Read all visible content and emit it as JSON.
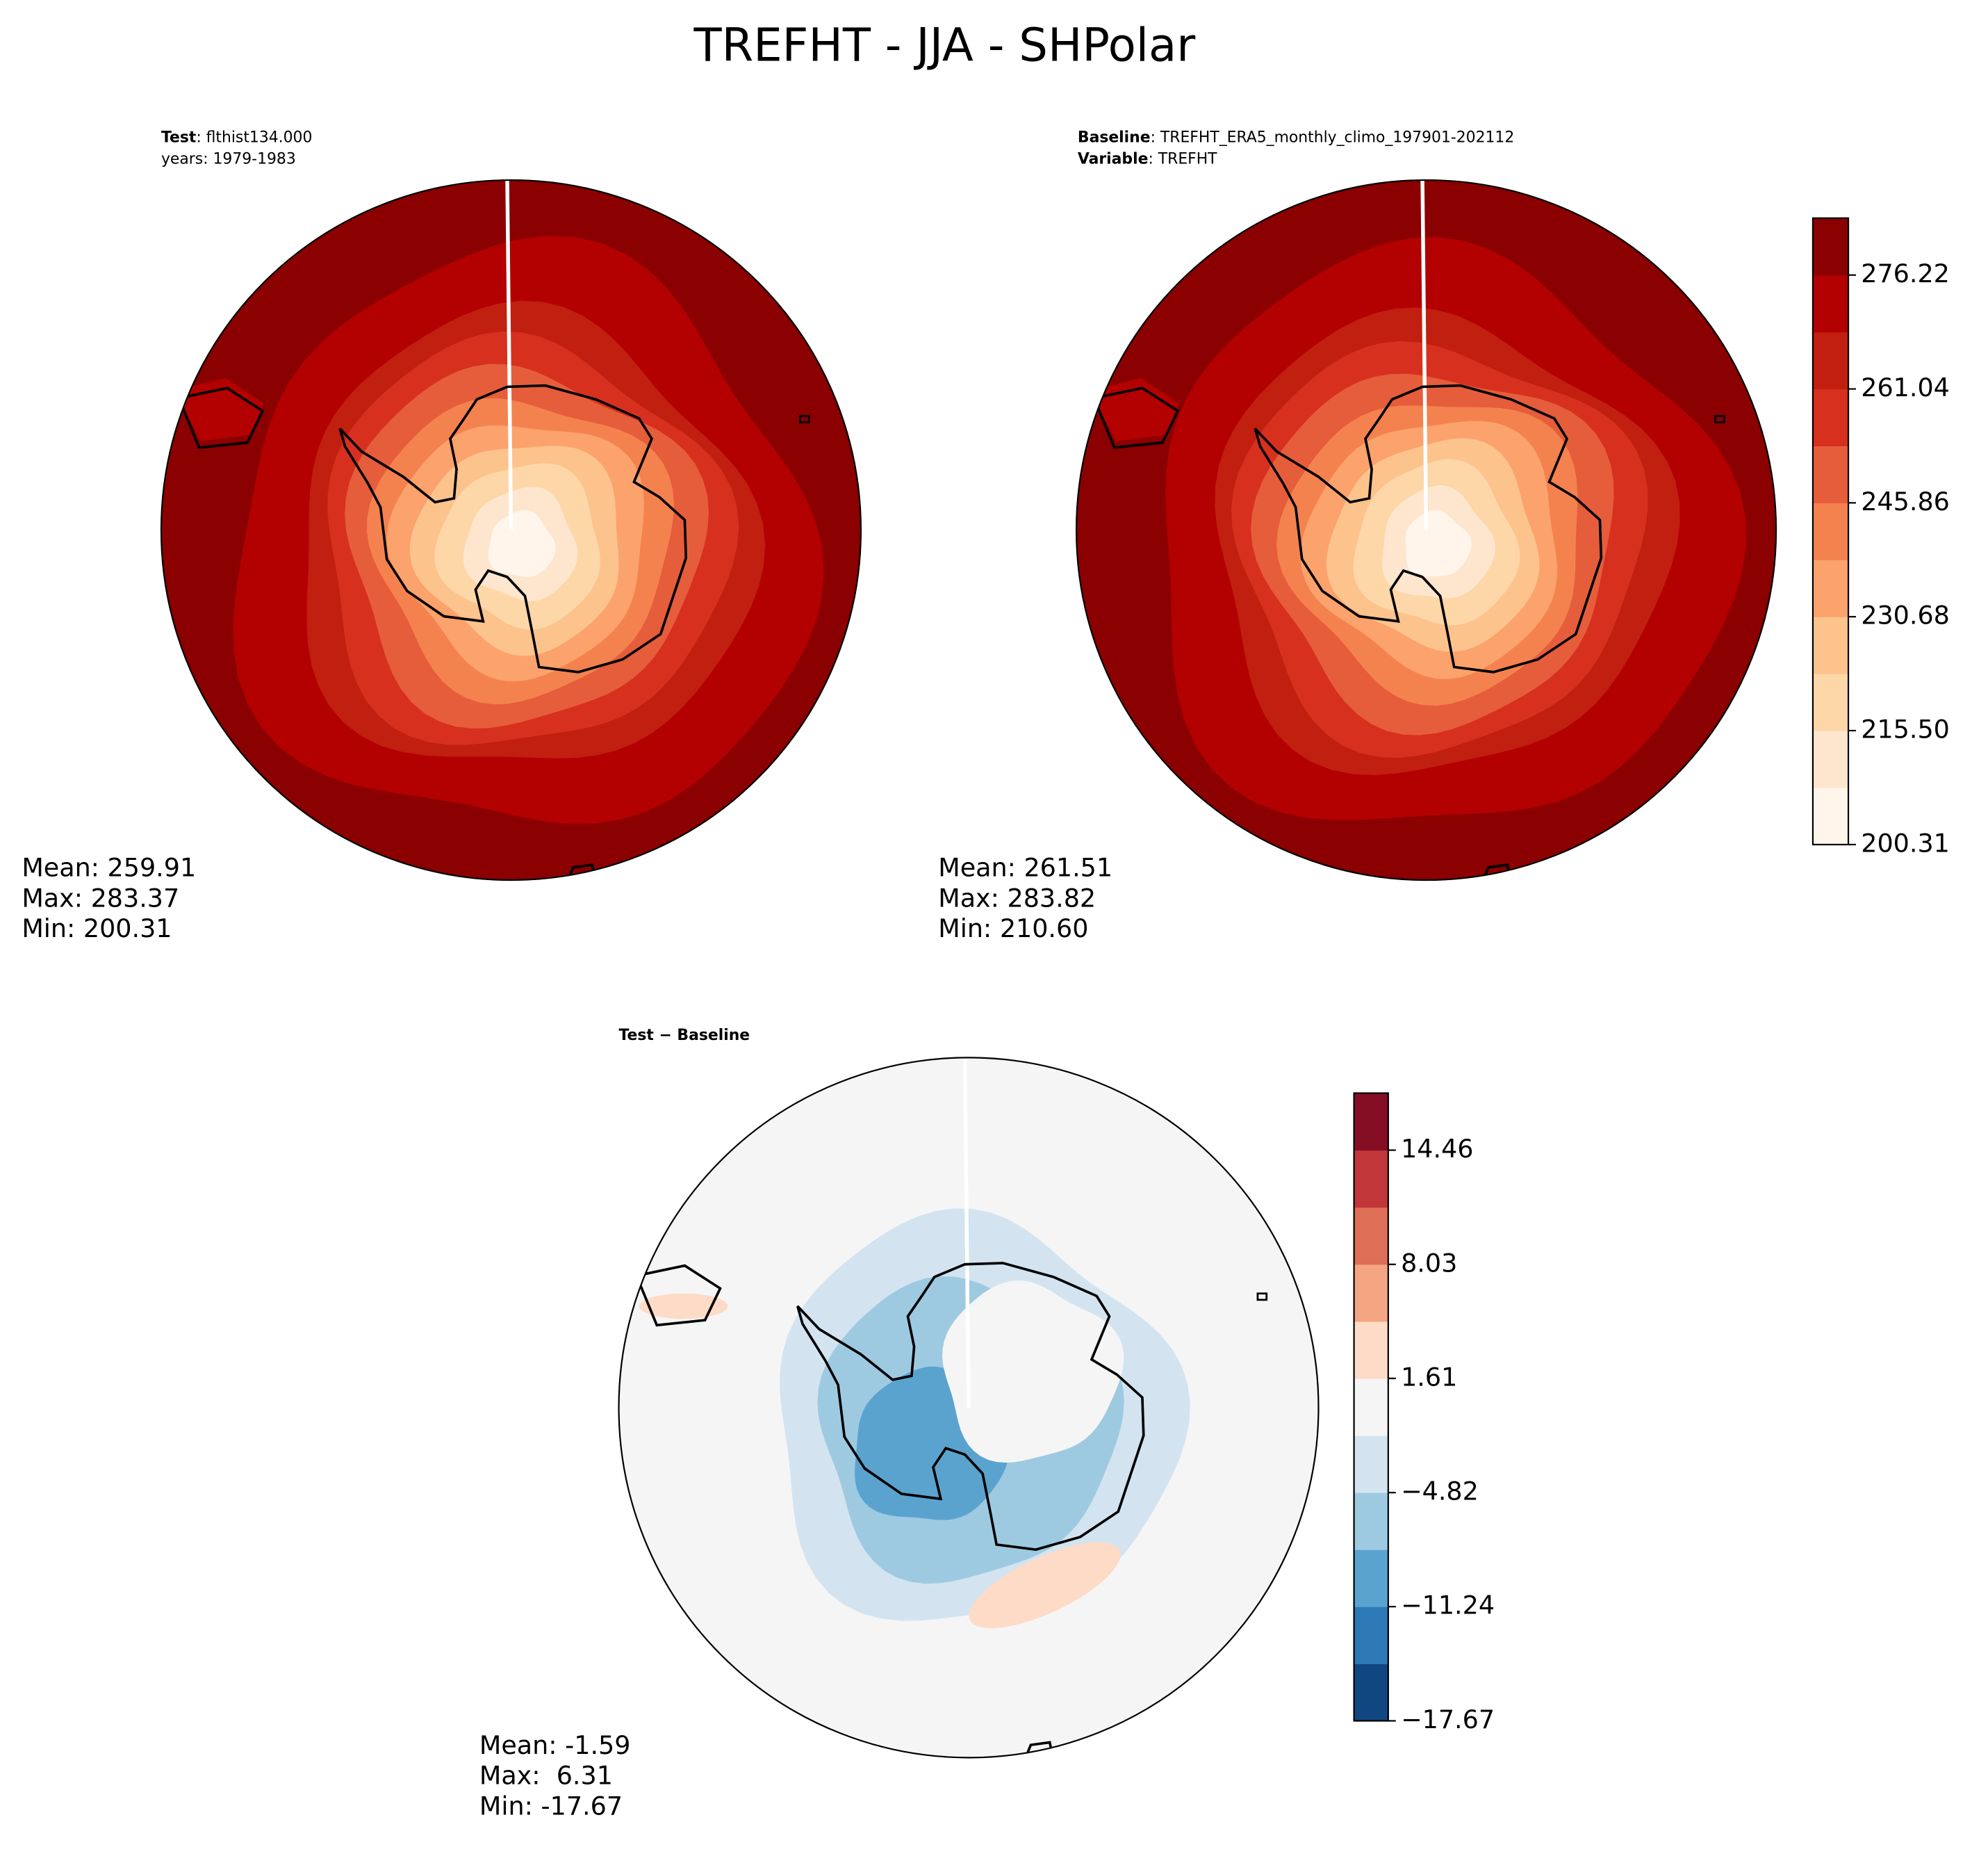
{
  "title": "TREFHT - JJA - SHPolar",
  "panels": [
    {
      "header": [
        {
          "bold": "Test",
          "text": ": flthist134.000"
        },
        {
          "text": "years: 1979-1983"
        }
      ],
      "stats": [
        "Mean: 259.91",
        "Max: 283.37",
        "Min: 200.31"
      ]
    },
    {
      "header": [
        {
          "bold": "Baseline",
          "text": ": TREFHT_ERA5_monthly_climo_197901-202112"
        },
        {
          "bold": "Variable",
          "text": ": TREFHT"
        }
      ],
      "stats": [
        "Mean: 261.51",
        "Max: 283.82",
        "Min: 210.60"
      ]
    },
    {
      "header": [
        {
          "bold": "Test − Baseline"
        }
      ],
      "stats": [
        "Mean: -1.59",
        "Max:  6.31",
        "Min: -17.67"
      ]
    }
  ],
  "colorbars": [
    {
      "lim": [
        200.31,
        283.81
      ],
      "ticks": [
        200.31,
        {
          "value": 215.5,
          "label": "215.50"
        },
        230.68,
        245.86,
        261.04,
        276.22
      ],
      "colors": [
        "#fff5eb",
        "#fee6ce",
        "#fdd7a8",
        "#fdc38d",
        "#fca26c",
        "#f4824f",
        "#e65d3b",
        "#d7301f",
        "#c11f10",
        "#b30000",
        "#8b0000"
      ]
    },
    {
      "lim": [
        -17.67,
        17.67
      ],
      "ticks": [
        {
          "value": -17.67,
          "label": "−17.67"
        },
        {
          "value": -11.24,
          "label": "−11.24"
        },
        {
          "value": -4.82,
          "label": "−4.82"
        },
        1.61,
        8.03,
        14.46
      ],
      "colors": [
        "#114781",
        "#2c79b5",
        "#5ba3cf",
        "#9ecae1",
        "#d3e4f0",
        "#f5f5f5",
        "#fddbc7",
        "#f4a582",
        "#de6e56",
        "#c13639",
        "#850e25"
      ]
    }
  ]
}
